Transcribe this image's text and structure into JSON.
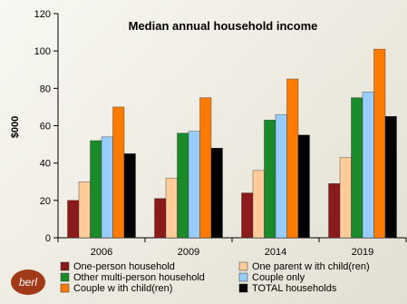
{
  "chart_data": {
    "type": "bar",
    "title": "Median annual household income",
    "xlabel": "",
    "ylabel": "$000",
    "ylim": [
      0,
      120
    ],
    "yticks": [
      0,
      20,
      40,
      60,
      80,
      100,
      120
    ],
    "categories": [
      "2006",
      "2009",
      "2014",
      "2019"
    ],
    "series": [
      {
        "name": "One-person household",
        "color": "#8b1a1a",
        "values": [
          20,
          21,
          24,
          29
        ]
      },
      {
        "name": "One parent w ith child(ren)",
        "color": "#ffcc99",
        "values": [
          30,
          32,
          36,
          43
        ]
      },
      {
        "name": "Other multi-person household",
        "color": "#1a8a2a",
        "values": [
          52,
          56,
          63,
          75
        ]
      },
      {
        "name": "Couple only",
        "color": "#99ccff",
        "values": [
          54,
          57,
          66,
          78
        ]
      },
      {
        "name": "Couple w ith child(ren)",
        "color": "#ff7a00",
        "values": [
          70,
          75,
          85,
          101
        ]
      },
      {
        "name": "TOTAL households",
        "color": "#000000",
        "values": [
          45,
          48,
          55,
          65
        ]
      }
    ],
    "legend_placement": "bottom",
    "grid": false
  },
  "logo": {
    "text": "berl",
    "color": "#a23a1a"
  }
}
